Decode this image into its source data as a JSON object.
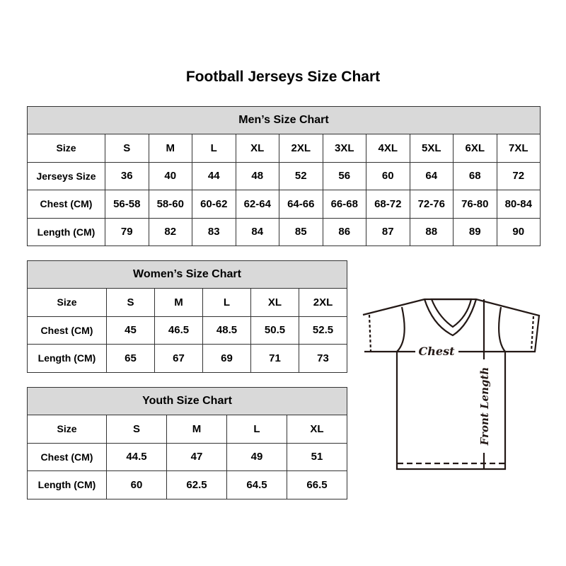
{
  "title": "Football Jerseys Size Chart",
  "men": {
    "caption": "Men’s Size Chart",
    "rows": [
      {
        "label": "Size",
        "values": [
          "S",
          "M",
          "L",
          "XL",
          "2XL",
          "3XL",
          "4XL",
          "5XL",
          "6XL",
          "7XL"
        ]
      },
      {
        "label": "Jerseys Size",
        "values": [
          "36",
          "40",
          "44",
          "48",
          "52",
          "56",
          "60",
          "64",
          "68",
          "72"
        ]
      },
      {
        "label": "Chest (CM)",
        "values": [
          "56-58",
          "58-60",
          "60-62",
          "62-64",
          "64-66",
          "66-68",
          "68-72",
          "72-76",
          "76-80",
          "80-84"
        ]
      },
      {
        "label": "Length (CM)",
        "values": [
          "79",
          "82",
          "83",
          "84",
          "85",
          "86",
          "87",
          "88",
          "89",
          "90"
        ]
      }
    ]
  },
  "women": {
    "caption": "Women’s Size Chart",
    "rows": [
      {
        "label": "Size",
        "values": [
          "S",
          "M",
          "L",
          "XL",
          "2XL"
        ]
      },
      {
        "label": "Chest (CM)",
        "values": [
          "45",
          "46.5",
          "48.5",
          "50.5",
          "52.5"
        ]
      },
      {
        "label": "Length (CM)",
        "values": [
          "65",
          "67",
          "69",
          "71",
          "73"
        ]
      }
    ]
  },
  "youth": {
    "caption": "Youth Size Chart",
    "rows": [
      {
        "label": "Size",
        "values": [
          "S",
          "M",
          "L",
          "XL"
        ]
      },
      {
        "label": "Chest (CM)",
        "values": [
          "44.5",
          "47",
          "49",
          "51"
        ]
      },
      {
        "label": "Length (CM)",
        "values": [
          "60",
          "62.5",
          "64.5",
          "66.5"
        ]
      }
    ]
  },
  "diagram": {
    "chest_label": "Chest",
    "length_label": "Front Length"
  }
}
